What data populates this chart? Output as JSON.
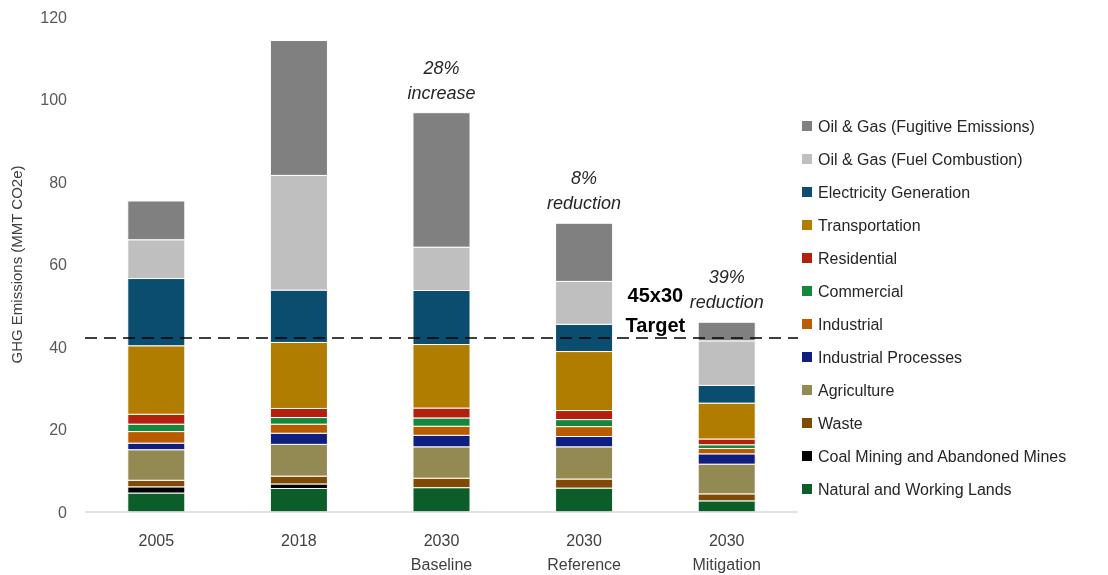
{
  "chart_data": {
    "type": "bar",
    "stacked": true,
    "ylabel": "GHG Emissions (MMT CO2e)",
    "categories": [
      "2005",
      "2018",
      "2030 Baseline",
      "2030 Reference",
      "2030 Mitigation"
    ],
    "series": [
      {
        "name": "Natural and Working Lands",
        "color": "#0b5e2a",
        "values": [
          4.6,
          5.7,
          5.9,
          5.8,
          2.7
        ]
      },
      {
        "name": "Coal Mining and Abandoned Mines",
        "color": "#000000",
        "values": [
          1.5,
          1.1,
          0,
          0,
          0
        ]
      },
      {
        "name": "Waste",
        "color": "#7f4a05",
        "values": [
          1.6,
          1.9,
          2.3,
          2.2,
          1.7
        ]
      },
      {
        "name": "Agriculture",
        "color": "#938953",
        "values": [
          7.4,
          7.7,
          7.6,
          7.8,
          7.2
        ]
      },
      {
        "name": "Industrial Processes",
        "color": "#101e80",
        "values": [
          1.6,
          2.7,
          2.8,
          2.5,
          2.5
        ]
      },
      {
        "name": "Industrial",
        "color": "#b85c00",
        "values": [
          2.8,
          2.2,
          2.2,
          2.4,
          1.3
        ]
      },
      {
        "name": "Commercial",
        "color": "#15873d",
        "values": [
          1.8,
          1.6,
          2.0,
          1.7,
          0.9
        ]
      },
      {
        "name": "Residential",
        "color": "#b3200e",
        "values": [
          2.4,
          2.2,
          2.4,
          2.2,
          1.4
        ]
      },
      {
        "name": "Transportation",
        "color": "#b07d00",
        "values": [
          16.6,
          16.0,
          15.4,
          14.3,
          8.7
        ]
      },
      {
        "name": "Electricity Generation",
        "color": "#0a4d6e",
        "values": [
          16.3,
          12.7,
          13.1,
          6.6,
          4.3
        ]
      },
      {
        "name": "Oil & Gas (Fuel Combustion)",
        "color": "#bfbfbf",
        "values": [
          9.4,
          27.8,
          10.5,
          10.4,
          10.8
        ]
      },
      {
        "name": "Oil & Gas (Fugitive Emissions)",
        "color": "#808080",
        "values": [
          9.4,
          32.7,
          32.6,
          14.1,
          4.5
        ]
      }
    ],
    "ylim": [
      0,
      120
    ],
    "yticks": [
      0,
      20,
      40,
      60,
      80,
      100,
      120
    ],
    "grid": false,
    "legend": "right",
    "ref_lines": [
      {
        "axis": "y",
        "value": 42.2,
        "label": "45x30 Target",
        "color": "#000000",
        "line_style": "dashed"
      }
    ],
    "annotations": [
      {
        "text": "28% increase",
        "x": "2030 Baseline",
        "y": 96.8
      },
      {
        "text": "8% reduction",
        "x": "2030 Reference",
        "y": 70.0
      },
      {
        "text": "39% reduction",
        "x": "2030 Mitigation",
        "y": 46.0
      }
    ]
  }
}
